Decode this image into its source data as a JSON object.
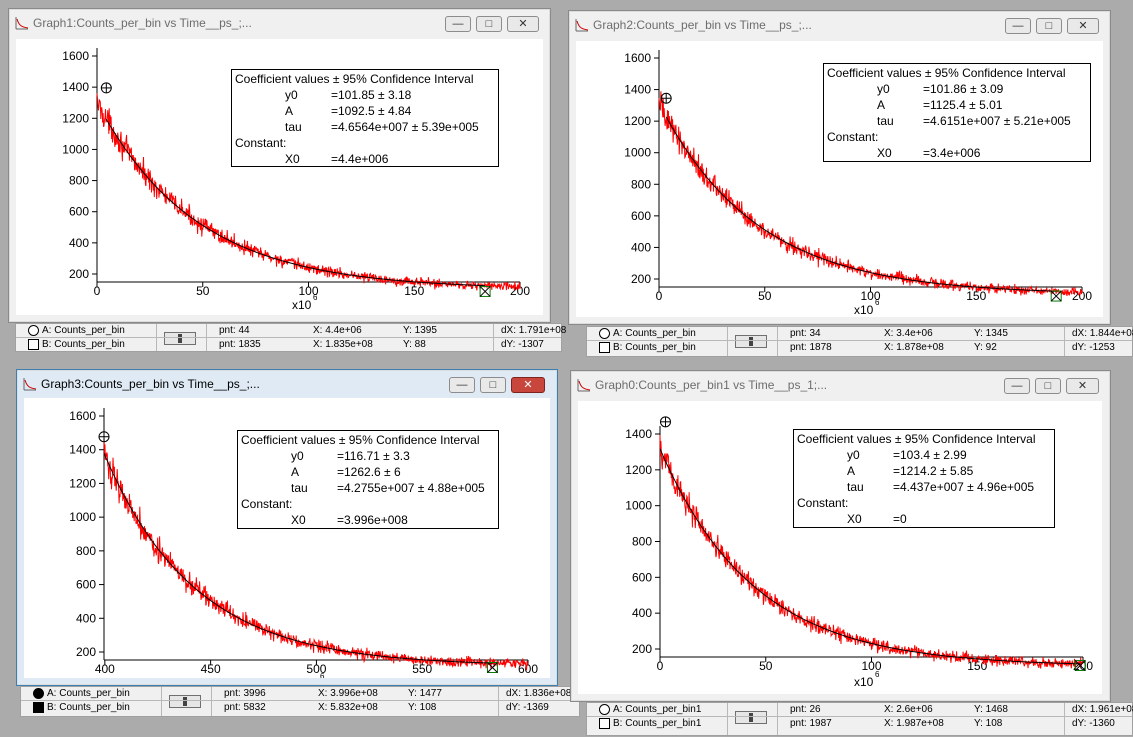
{
  "windows": [
    {
      "id": "graph1",
      "title": "Graph1:Counts_per_bin vs Time__ps_;...",
      "active": false,
      "coef": {
        "header": "Coefficient values ± 95% Confidence Interval",
        "rows": [
          {
            "name": "y0",
            "value": "=101.85 ± 3.18"
          },
          {
            "name": "A",
            "value": "=1092.5 ± 4.84"
          },
          {
            "name": "tau",
            "value": "=4.6564e+007 ± 5.39e+005"
          }
        ],
        "constant_label": "Constant:",
        "constants": [
          {
            "name": "X0",
            "value": "=4.4e+006"
          }
        ]
      },
      "x_unit": "x10",
      "x_unit_exp": "6",
      "chart_data": {
        "type": "line",
        "x_ticks": [
          "0",
          "50",
          "100",
          "150",
          "200"
        ],
        "y_ticks": [
          "200",
          "400",
          "600",
          "800",
          "1000",
          "1200",
          "1400",
          "1600"
        ],
        "xlim": [
          0,
          200
        ],
        "ylim": [
          50,
          1650
        ],
        "series": [
          {
            "name": "Counts_per_bin",
            "color": "#ff0000",
            "model": {
              "y0": 101.85,
              "A": 1092.5,
              "tau": 46.564,
              "x0": 4.4
            },
            "x_range": [
              0,
              200
            ]
          },
          {
            "name": "fit",
            "color": "#000000",
            "model": {
              "y0": 101.85,
              "A": 1092.5,
              "tau": 46.564,
              "x0": 4.4
            },
            "x_range": [
              4.4,
              183.5
            ]
          }
        ],
        "cursor_a": {
          "x": 4.4,
          "y": 1395
        },
        "cursor_b": {
          "x": 183.5,
          "y": 88
        }
      },
      "info": {
        "traceA": "A: Counts_per_bin",
        "traceB": "B: Counts_per_bin",
        "pntA": "pnt: 44",
        "xA": "X: 4.4e+06",
        "yA": "Y: 1395",
        "dX": "dX: 1.791e+08",
        "pntB": "pnt: 1835",
        "xB": "X: 1.835e+08",
        "yB": "Y: 88",
        "dY": "dY: -1307"
      }
    },
    {
      "id": "graph2",
      "title": "Graph2:Counts_per_bin vs Time__ps_;...",
      "active": false,
      "coef": {
        "header": "Coefficient values ± 95% Confidence Interval",
        "rows": [
          {
            "name": "y0",
            "value": "=101.86 ± 3.09"
          },
          {
            "name": "A",
            "value": "=1125.4 ± 5.01"
          },
          {
            "name": "tau",
            "value": "=4.6151e+007 ± 5.21e+005"
          }
        ],
        "constant_label": "Constant:",
        "constants": [
          {
            "name": "X0",
            "value": "=3.4e+006"
          }
        ]
      },
      "x_unit": "x10",
      "x_unit_exp": "6",
      "chart_data": {
        "type": "line",
        "x_ticks": [
          "0",
          "50",
          "100",
          "150",
          "200"
        ],
        "y_ticks": [
          "200",
          "400",
          "600",
          "800",
          "1000",
          "1200",
          "1400",
          "1600"
        ],
        "xlim": [
          0,
          200
        ],
        "ylim": [
          50,
          1650
        ],
        "series": [
          {
            "name": "Counts_per_bin",
            "color": "#ff0000",
            "model": {
              "y0": 101.86,
              "A": 1125.4,
              "tau": 46.151,
              "x0": 3.4
            },
            "x_range": [
              0,
              200
            ]
          },
          {
            "name": "fit",
            "color": "#000000",
            "model": {
              "y0": 101.86,
              "A": 1125.4,
              "tau": 46.151,
              "x0": 3.4
            },
            "x_range": [
              3.4,
              187.8
            ]
          }
        ],
        "cursor_a": {
          "x": 3.4,
          "y": 1345
        },
        "cursor_b": {
          "x": 187.8,
          "y": 92
        }
      },
      "info": {
        "traceA": "A: Counts_per_bin",
        "traceB": "B: Counts_per_bin",
        "pntA": "pnt: 34",
        "xA": "X: 3.4e+06",
        "yA": "Y: 1345",
        "dX": "dX: 1.844e+08",
        "pntB": "pnt: 1878",
        "xB": "X: 1.878e+08",
        "yB": "Y: 92",
        "dY": "dY: -1253"
      }
    },
    {
      "id": "graph3",
      "title": "Graph3:Counts_per_bin vs Time__ps_;...",
      "active": true,
      "coef": {
        "header": "Coefficient values ± 95% Confidence Interval",
        "rows": [
          {
            "name": "y0",
            "value": "=116.71 ± 3.3"
          },
          {
            "name": "A",
            "value": "=1262.6 ± 6"
          },
          {
            "name": "tau",
            "value": "=4.2755e+007 ± 4.88e+005"
          }
        ],
        "constant_label": "Constant:",
        "constants": [
          {
            "name": "X0",
            "value": "=3.996e+008"
          }
        ]
      },
      "x_unit": "x10",
      "x_unit_exp": "6",
      "chart_data": {
        "type": "line",
        "x_ticks": [
          "400",
          "450",
          "500",
          "550",
          "600"
        ],
        "y_ticks": [
          "200",
          "400",
          "600",
          "800",
          "1000",
          "1200",
          "1400",
          "1600"
        ],
        "xlim": [
          399.6,
          600
        ],
        "ylim": [
          50,
          1650
        ],
        "series": [
          {
            "name": "Counts_per_bin",
            "color": "#ff0000",
            "model": {
              "y0": 116.71,
              "A": 1262.6,
              "tau": 42.755,
              "x0": 399.6
            },
            "x_range": [
              399.6,
              600
            ]
          },
          {
            "name": "fit",
            "color": "#000000",
            "model": {
              "y0": 116.71,
              "A": 1262.6,
              "tau": 42.755,
              "x0": 399.6
            },
            "x_range": [
              399.6,
              583.2
            ]
          }
        ],
        "cursor_a": {
          "x": 399.6,
          "y": 1477
        },
        "cursor_b": {
          "x": 583.2,
          "y": 108
        }
      },
      "info": {
        "traceA": "A: Counts_per_bin",
        "traceB": "B: Counts_per_bin",
        "pntA": "pnt: 3996",
        "xA": "X: 3.996e+08",
        "yA": "Y: 1477",
        "dX": "dX: 1.836e+08",
        "pntB": "pnt: 5832",
        "xB": "X: 5.832e+08",
        "yB": "Y: 108",
        "dY": "dY: -1369"
      }
    },
    {
      "id": "graph0",
      "title": "Graph0:Counts_per_bin1 vs Time__ps_1;...",
      "active": false,
      "coef": {
        "header": "Coefficient values ± 95% Confidence Interval",
        "rows": [
          {
            "name": "y0",
            "value": "=103.4 ± 2.99"
          },
          {
            "name": "A",
            "value": "=1214.2 ± 5.85"
          },
          {
            "name": "tau",
            "value": "=4.437e+007 ± 4.96e+005"
          }
        ],
        "constant_label": "Constant:",
        "constants": [
          {
            "name": "X0",
            "value": "=0"
          }
        ]
      },
      "x_unit": "x10",
      "x_unit_exp": "6",
      "chart_data": {
        "type": "line",
        "x_ticks": [
          "0",
          "50",
          "100",
          "150",
          "200"
        ],
        "y_ticks": [
          "200",
          "400",
          "600",
          "800",
          "1000",
          "1200",
          "1400"
        ],
        "xlim": [
          0,
          200
        ],
        "ylim": [
          50,
          1470
        ],
        "series": [
          {
            "name": "Counts_per_bin1",
            "color": "#ff0000",
            "model": {
              "y0": 103.4,
              "A": 1214.2,
              "tau": 44.37,
              "x0": 0
            },
            "x_range": [
              0,
              200
            ]
          },
          {
            "name": "fit",
            "color": "#000000",
            "model": {
              "y0": 103.4,
              "A": 1214.2,
              "tau": 44.37,
              "x0": 0
            },
            "x_range": [
              0,
              198.7
            ]
          }
        ],
        "cursor_a": {
          "x": 2.6,
          "y": 1468
        },
        "cursor_b": {
          "x": 198.7,
          "y": 108
        }
      },
      "info": {
        "traceA": "A: Counts_per_bin1",
        "traceB": "B: Counts_per_bin1",
        "pntA": "pnt: 26",
        "xA": "X: 2.6e+06",
        "yA": "Y: 1468",
        "dX": "dX: 1.961e+08",
        "pntB": "pnt: 1987",
        "xB": "X: 1.987e+08",
        "yB": "Y: 108",
        "dY": "dY: -1360"
      }
    }
  ]
}
